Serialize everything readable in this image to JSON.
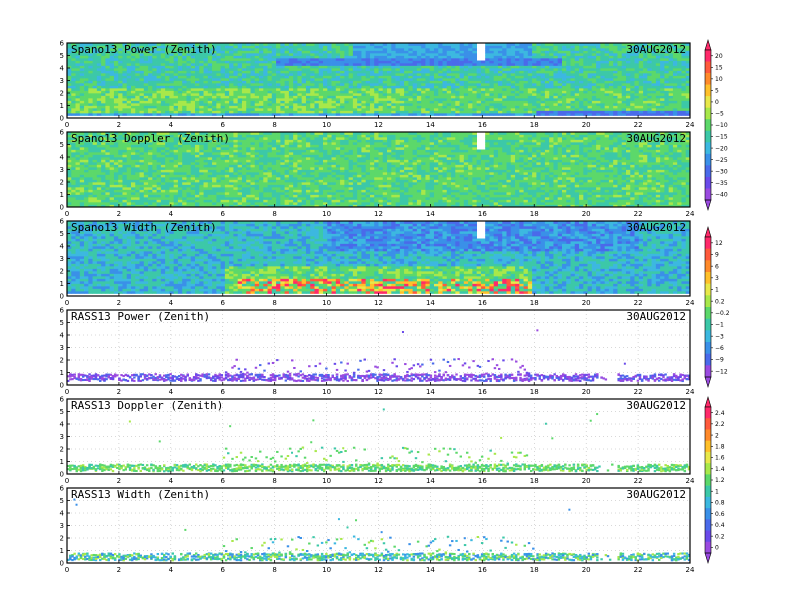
{
  "chart_data": [
    {
      "type": "heatmap",
      "title": "Spano13 Power (Zenith)",
      "date": "30AUG2012",
      "x_range": [
        0,
        24
      ],
      "y_range": [
        0,
        6
      ],
      "x_ticks": [
        "0",
        "2",
        "4",
        "6",
        "8",
        "10",
        "12",
        "14",
        "16",
        "18",
        "20",
        "22",
        "24"
      ],
      "y_ticks": [
        "0",
        "1",
        "2",
        "3",
        "4",
        "5",
        "6"
      ],
      "colorbar": {
        "labels": [
          "20",
          "15",
          "10",
          "5",
          "0",
          "−5",
          "−10",
          "−15",
          "−20",
          "−25",
          "−30",
          "−35",
          "−40"
        ],
        "colors": [
          "#ff2a6a",
          "#ff5a3c",
          "#ff8a2a",
          "#ffc02a",
          "#e8e84a",
          "#a8e84a",
          "#5cd86a",
          "#3cc8a8",
          "#3cb8e0",
          "#3a90e8",
          "#4a6aea",
          "#6a4aea",
          "#9a4ae0"
        ]
      },
      "gap_col": 16
    },
    {
      "type": "heatmap",
      "title": "Spano13 Doppler (Zenith)",
      "date": "30AUG2012",
      "x_range": [
        0,
        24
      ],
      "y_range": [
        0,
        6
      ],
      "x_ticks": [
        "0",
        "2",
        "4",
        "6",
        "8",
        "10",
        "12",
        "14",
        "16",
        "18",
        "20",
        "22",
        "24"
      ],
      "y_ticks": [
        "0",
        "1",
        "2",
        "3",
        "4",
        "5",
        "6"
      ],
      "gap_col": 16
    },
    {
      "type": "heatmap",
      "title": "Spano13 Width (Zenith)",
      "date": "30AUG2012",
      "x_range": [
        0,
        24
      ],
      "y_range": [
        0,
        6
      ],
      "x_ticks": [
        "0",
        "2",
        "4",
        "6",
        "8",
        "10",
        "12",
        "14",
        "16",
        "18",
        "20",
        "22",
        "24"
      ],
      "y_ticks": [
        "0",
        "1",
        "2",
        "3",
        "4",
        "5",
        "6"
      ],
      "colorbar": {
        "labels": [
          "12",
          "9",
          "6",
          "3",
          "1",
          "0.2",
          "−0.2",
          "−1",
          "−3",
          "−6",
          "−9",
          "−12"
        ],
        "colors": [
          "#ff2a6a",
          "#ff5a3c",
          "#ff8a2a",
          "#ffc02a",
          "#e8e84a",
          "#a8e84a",
          "#5cd86a",
          "#3cc8a8",
          "#3cb8e0",
          "#3a90e8",
          "#4a6aea",
          "#9a4ae0"
        ]
      },
      "gap_col": 16
    },
    {
      "type": "heatmap",
      "title": "RASS13 Power (Zenith)",
      "date": "30AUG2012",
      "x_range": [
        0,
        24
      ],
      "y_range": [
        0,
        6
      ],
      "x_ticks": [
        "0",
        "2",
        "4",
        "6",
        "8",
        "10",
        "12",
        "14",
        "16",
        "18",
        "20",
        "22",
        "24"
      ],
      "y_ticks": [
        "0",
        "1",
        "2",
        "3",
        "4",
        "5",
        "6"
      ]
    },
    {
      "type": "heatmap",
      "title": "RASS13 Doppler (Zenith)",
      "date": "30AUG2012",
      "x_range": [
        0,
        24
      ],
      "y_range": [
        0,
        6
      ],
      "x_ticks": [
        "0",
        "2",
        "4",
        "6",
        "8",
        "10",
        "12",
        "14",
        "16",
        "18",
        "20",
        "22",
        "24"
      ],
      "y_ticks": [
        "0",
        "1",
        "2",
        "3",
        "4",
        "5",
        "6"
      ],
      "colorbar": {
        "labels": [
          "2.4",
          "2.2",
          "2",
          "1.8",
          "1.6",
          "1.4",
          "1.2",
          "1",
          "0.8",
          "0.6",
          "0.4",
          "0.2",
          "0"
        ],
        "colors": [
          "#ff2a6a",
          "#ff5a3c",
          "#ff8a2a",
          "#ffc02a",
          "#e8e84a",
          "#a8e84a",
          "#5cd86a",
          "#3cc8a8",
          "#3cb8e0",
          "#3a90e8",
          "#4a6aea",
          "#6a4aea",
          "#9a4ae0"
        ]
      }
    },
    {
      "type": "heatmap",
      "title": "RASS13 Width (Zenith)",
      "date": "30AUG2012",
      "x_range": [
        0,
        24
      ],
      "y_range": [
        0,
        6
      ],
      "x_ticks": [
        "0",
        "2",
        "4",
        "6",
        "8",
        "10",
        "12",
        "14",
        "16",
        "18",
        "20",
        "22",
        "24"
      ],
      "y_ticks": [
        "0",
        "1",
        "2",
        "3",
        "4",
        "5",
        "6"
      ]
    }
  ]
}
